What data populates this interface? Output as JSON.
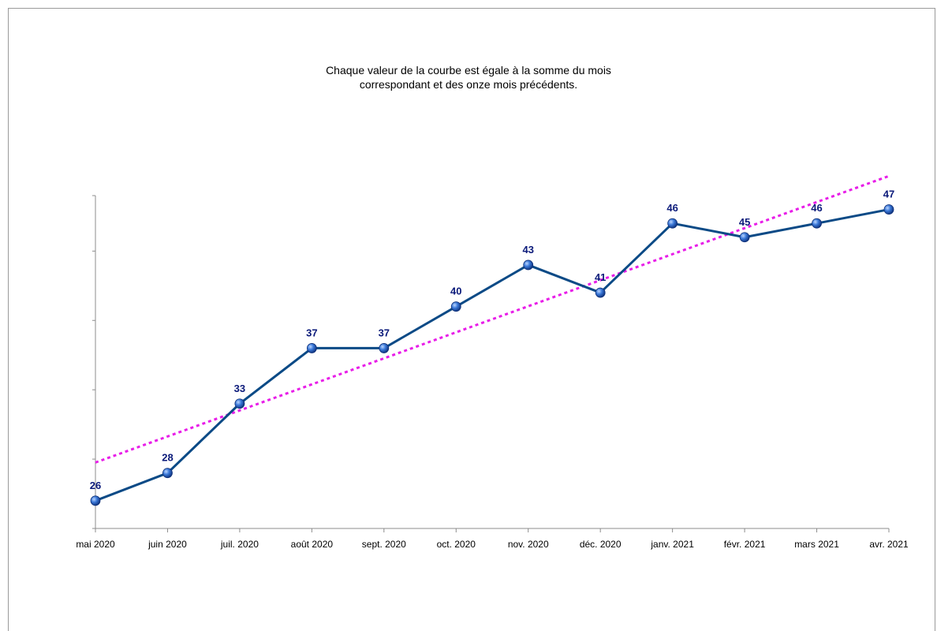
{
  "chart_data": {
    "type": "line",
    "title_lines": [
      "Chaque valeur de la courbe est égale à la somme du mois",
      "correspondant et des onze mois précédents."
    ],
    "xlabel": "",
    "ylabel": "",
    "ylim": [
      24,
      48
    ],
    "y_ticks": [
      24,
      29,
      34,
      39,
      44,
      49
    ],
    "categories": [
      "mai 2020",
      "juin 2020",
      "juil. 2020",
      "août 2020",
      "sept. 2020",
      "oct. 2020",
      "nov. 2020",
      "déc. 2020",
      "janv. 2021",
      "févr. 2021",
      "mars 2021",
      "avr. 2021"
    ],
    "series": [
      {
        "values": [
          26,
          28,
          33,
          37,
          37,
          40,
          43,
          41,
          46,
          45,
          46,
          47
        ],
        "color": "#0b4a86",
        "marker_color": "#2e6fd1",
        "data_labels": true
      }
    ],
    "trendline": {
      "type": "linear",
      "color": "#e81ee8",
      "style": "dotted"
    },
    "grid": false,
    "legend": "none"
  }
}
